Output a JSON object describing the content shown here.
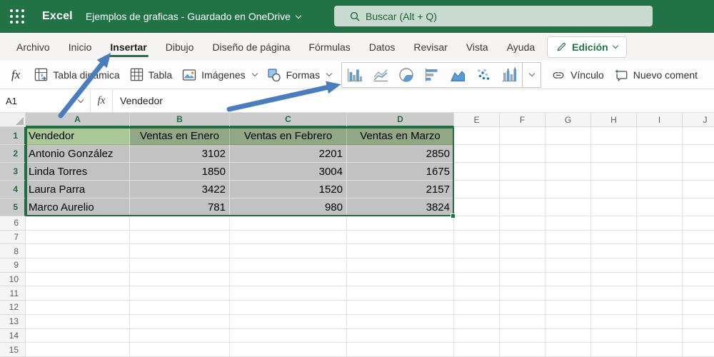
{
  "topbar": {
    "brand": "Excel",
    "doc_title": "Ejemplos de graficas  -  Guardado en OneDrive",
    "search_placeholder": "Buscar (Alt + Q)"
  },
  "menu": {
    "items": [
      "Archivo",
      "Inicio",
      "Insertar",
      "Dibujo",
      "Diseño de página",
      "Fórmulas",
      "Datos",
      "Revisar",
      "Vista",
      "Ayuda"
    ],
    "active_item": "Insertar",
    "edit_button_label": "Edición"
  },
  "toolbar": {
    "fx_label": "fx",
    "pivot_label": "Tabla dinámica",
    "table_label": "Tabla",
    "images_label": "Imágenes",
    "shapes_label": "Formas",
    "chart_icons": [
      "column-chart-icon",
      "line-chart-icon",
      "pie-chart-icon",
      "bar-chart-icon",
      "area-chart-icon",
      "scatter-chart-icon",
      "combo-chart-icon"
    ],
    "link_label": "Vínculo",
    "new_comment_label": "Nuevo coment"
  },
  "formula_bar": {
    "name_box_value": "A1",
    "fx_glyph": "fx",
    "formula_value": "Vendedor"
  },
  "grid": {
    "column_letters": [
      "A",
      "B",
      "C",
      "D",
      "E",
      "F",
      "G",
      "H",
      "I",
      "J"
    ],
    "row_count": 15,
    "selected_columns": [
      "A",
      "B",
      "C",
      "D"
    ],
    "selected_rows": [
      1,
      2,
      3,
      4,
      5
    ],
    "active_cell": "A1"
  },
  "sheet_data": {
    "headers": [
      "Vendedor",
      "Ventas en Enero",
      "Ventas en Febrero",
      "Ventas en Marzo"
    ],
    "rows": [
      [
        "Antonio González",
        "3102",
        "2201",
        "2850"
      ],
      [
        "Linda Torres",
        "1850",
        "3004",
        "1675"
      ],
      [
        "Laura Parra",
        "3422",
        "1520",
        "2157"
      ],
      [
        "Marco Aurelio",
        "781",
        "980",
        "3824"
      ]
    ]
  },
  "colors": {
    "brand_green": "#217346",
    "selection_green": "#1e6e41",
    "active_cell_fill": "#abc998",
    "header_row_fill": "#92a786",
    "selection_gray": "#c2c2c2",
    "arrow_blue": "#4a7dbe",
    "chart_blue": "#5b9bd5"
  }
}
